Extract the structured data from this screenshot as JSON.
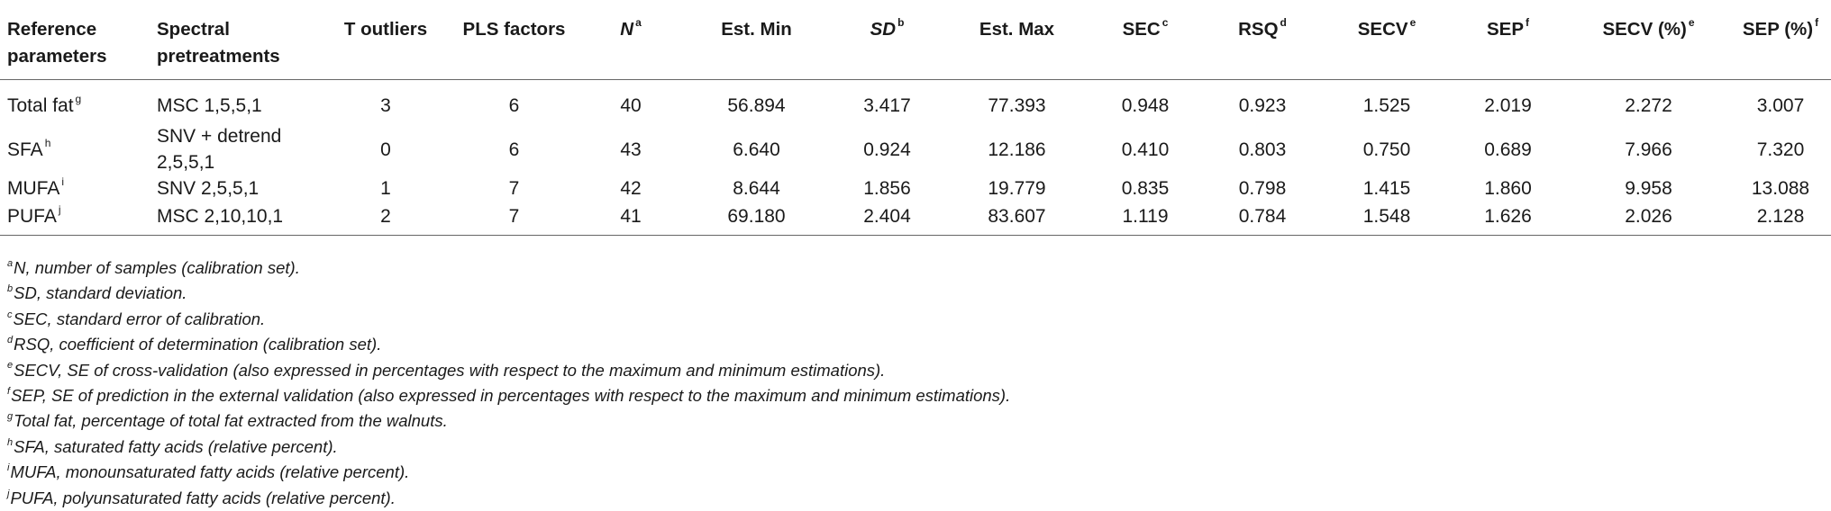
{
  "headers": [
    {
      "text": "Reference parameters",
      "sup": ""
    },
    {
      "text": "Spectral pretreatments",
      "sup": ""
    },
    {
      "text": "T outliers",
      "sup": ""
    },
    {
      "text": "PLS factors",
      "sup": ""
    },
    {
      "text": "N",
      "sup": "a"
    },
    {
      "text": "Est. Min",
      "sup": ""
    },
    {
      "text": "SD",
      "sup": "b"
    },
    {
      "text": "Est. Max",
      "sup": ""
    },
    {
      "text": "SEC",
      "sup": "c"
    },
    {
      "text": "RSQ",
      "sup": "d"
    },
    {
      "text": "SECV",
      "sup": "e"
    },
    {
      "text": "SEP",
      "sup": "f"
    },
    {
      "text": "SECV (%)",
      "sup": "e"
    },
    {
      "text": "SEP (%)",
      "sup": "f"
    }
  ],
  "rows": [
    {
      "param": "Total fat",
      "param_sup": "g",
      "pretreatment": "MSC 1,5,5,1",
      "t_outliers": "3",
      "pls": "6",
      "n": "40",
      "est_min": "56.894",
      "sd": "3.417",
      "est_max": "77.393",
      "sec": "0.948",
      "rsq": "0.923",
      "secv": "1.525",
      "sep": "2.019",
      "secv_pct": "2.272",
      "sep_pct": "3.007"
    },
    {
      "param": "SFA",
      "param_sup": "h",
      "pretreatment": "SNV + detrend 2,5,5,1",
      "t_outliers": "0",
      "pls": "6",
      "n": "43",
      "est_min": "6.640",
      "sd": "0.924",
      "est_max": "12.186",
      "sec": "0.410",
      "rsq": "0.803",
      "secv": "0.750",
      "sep": "0.689",
      "secv_pct": "7.966",
      "sep_pct": "7.320"
    },
    {
      "param": "MUFA",
      "param_sup": "i",
      "pretreatment": "SNV 2,5,5,1",
      "t_outliers": "1",
      "pls": "7",
      "n": "42",
      "est_min": "8.644",
      "sd": "1.856",
      "est_max": "19.779",
      "sec": "0.835",
      "rsq": "0.798",
      "secv": "1.415",
      "sep": "1.860",
      "secv_pct": "9.958",
      "sep_pct": "13.088"
    },
    {
      "param": "PUFA",
      "param_sup": "j",
      "pretreatment": "MSC 2,10,10,1",
      "t_outliers": "2",
      "pls": "7",
      "n": "41",
      "est_min": "69.180",
      "sd": "2.404",
      "est_max": "83.607",
      "sec": "1.119",
      "rsq": "0.784",
      "secv": "1.548",
      "sep": "1.626",
      "secv_pct": "2.026",
      "sep_pct": "2.128"
    }
  ],
  "footnotes": [
    {
      "sup": "a",
      "text": "N, number of samples (calibration set)."
    },
    {
      "sup": "b",
      "text": "SD, standard deviation."
    },
    {
      "sup": "c",
      "text": "SEC, standard error of calibration."
    },
    {
      "sup": "d",
      "text": "RSQ, coefficient of determination (calibration set)."
    },
    {
      "sup": "e",
      "text": "SECV, SE of cross-validation (also expressed in percentages with respect to the maximum and minimum estimations)."
    },
    {
      "sup": "f",
      "text": "SEP, SE of prediction in the external validation (also expressed in percentages with respect to the maximum and minimum estimations)."
    },
    {
      "sup": "g",
      "text": "Total fat, percentage of total fat extracted from the walnuts."
    },
    {
      "sup": "h",
      "text": "SFA, saturated fatty acids (relative percent)."
    },
    {
      "sup": "i",
      "text": "MUFA, monounsaturated fatty acids (relative percent)."
    },
    {
      "sup": "j",
      "text": "PUFA, polyunsaturated fatty acids (relative percent)."
    }
  ]
}
